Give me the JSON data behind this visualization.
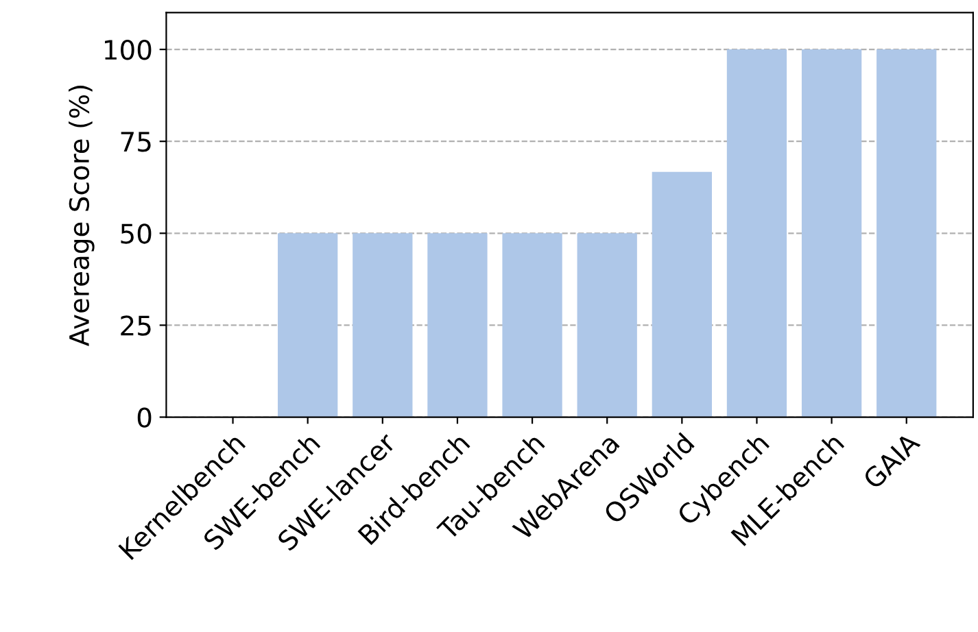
{
  "chart_data": {
    "type": "bar",
    "ylabel": "Avereage Score (%)",
    "categories": [
      "Kernelbench",
      "SWE-bench",
      "SWE-lancer",
      "Bird-bench",
      "Tau-bench",
      "WebArena",
      "OSWorld",
      "Cybench",
      "MLE-bench",
      "GAIA"
    ],
    "values": [
      0,
      50,
      50,
      50,
      50,
      50,
      66.7,
      100,
      100,
      100
    ],
    "color": "#aec7e8",
    "ylim": [
      0,
      110
    ],
    "yticks": [
      0,
      25,
      50,
      75,
      100
    ],
    "grid": "y"
  }
}
